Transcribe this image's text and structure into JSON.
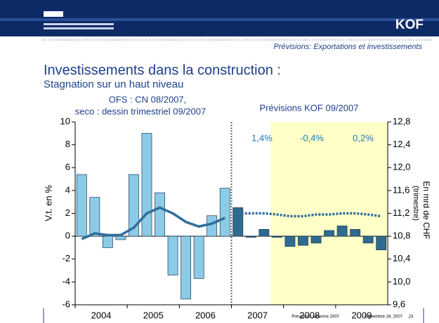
{
  "header": {
    "logo": "KOF",
    "section": "Prévisions: Exportations et investissements"
  },
  "title": "Investissements dans la construction :",
  "subtitle": "Stagnation sur un haut niveau",
  "chart_data": {
    "type": "bar",
    "annotations": [
      "OFS : CN 08/2007,",
      "seco : dessin trimestriel 09/2007",
      "Prévisions KOF 09/2007",
      "1,4%",
      "-0,4%",
      "0,2%"
    ],
    "ylabel": "V.t. en %",
    "y2label": [
      "En mrd de CHF",
      "(trimestre)"
    ],
    "year_labels": [
      "2004",
      "2005",
      "2006",
      "2007",
      "2008",
      "2009"
    ],
    "ylim": [
      -6,
      10
    ],
    "yticks": [
      -6,
      -4,
      -2,
      0,
      2,
      4,
      6,
      8,
      10
    ],
    "y2lim": [
      9.6,
      12.8
    ],
    "y2ticks": [
      {
        "value": 9.6,
        "label": "9,6"
      },
      {
        "value": 10.0,
        "label": "10,0"
      },
      {
        "value": 10.4,
        "label": "10,4"
      },
      {
        "value": 10.8,
        "label": "10,8"
      },
      {
        "value": 11.2,
        "label": "11,2"
      },
      {
        "value": 11.6,
        "label": "11,6"
      },
      {
        "value": 12.0,
        "label": "12,0"
      },
      {
        "value": 12.4,
        "label": "12,4"
      },
      {
        "value": 12.8,
        "label": "12,8"
      }
    ],
    "shade_from": 15,
    "shade_color": "#ffffc8",
    "series": [
      {
        "type": "bar",
        "values": [
          5.4,
          3.4,
          -1.0,
          -0.3,
          5.4,
          9.0,
          3.8,
          -3.4,
          -5.5,
          -3.7,
          1.8,
          4.2,
          2.5,
          -0.1,
          0.6,
          -0.1,
          -0.9,
          -0.8,
          -0.6,
          0.5,
          0.9,
          0.6,
          -0.6,
          -1.2
        ],
        "colors": [
          "#8ccbe6",
          "#8ccbe6",
          "#8ccbe6",
          "#8ccbe6",
          "#8ccbe6",
          "#8ccbe6",
          "#8ccbe6",
          "#8ccbe6",
          "#8ccbe6",
          "#8ccbe6",
          "#8ccbe6",
          "#8ccbe6",
          "#2f6a8f",
          "#2f6a8f",
          "#2f6a8f",
          "#2f6a8f",
          "#2f6a8f",
          "#2f6a8f",
          "#2f6a8f",
          "#2f6a8f",
          "#2f6a8f",
          "#2f6a8f",
          "#2f6a8f",
          "#2f6a8f"
        ]
      },
      {
        "type": "line",
        "axis": "y2",
        "color": "#2f6e9c",
        "dashed": false,
        "values": [
          10.75,
          10.85,
          10.82,
          10.82,
          10.95,
          11.2,
          11.3,
          11.2,
          11.05,
          10.97,
          11.02,
          11.12,
          null,
          null,
          null,
          null,
          null,
          null,
          null,
          null,
          null,
          null,
          null,
          null
        ]
      },
      {
        "type": "line",
        "axis": "y2",
        "color": "#2f6e9c",
        "dashed": true,
        "values": [
          null,
          null,
          null,
          null,
          null,
          null,
          null,
          null,
          null,
          null,
          null,
          null,
          11.2,
          11.2,
          11.2,
          11.18,
          11.15,
          11.15,
          11.18,
          11.18,
          11.2,
          11.2,
          11.18,
          11.15
        ]
      }
    ]
  },
  "footer": {
    "event": "Prévisions automne 2007",
    "date": "Septembre 28, 2007",
    "page": "23"
  }
}
